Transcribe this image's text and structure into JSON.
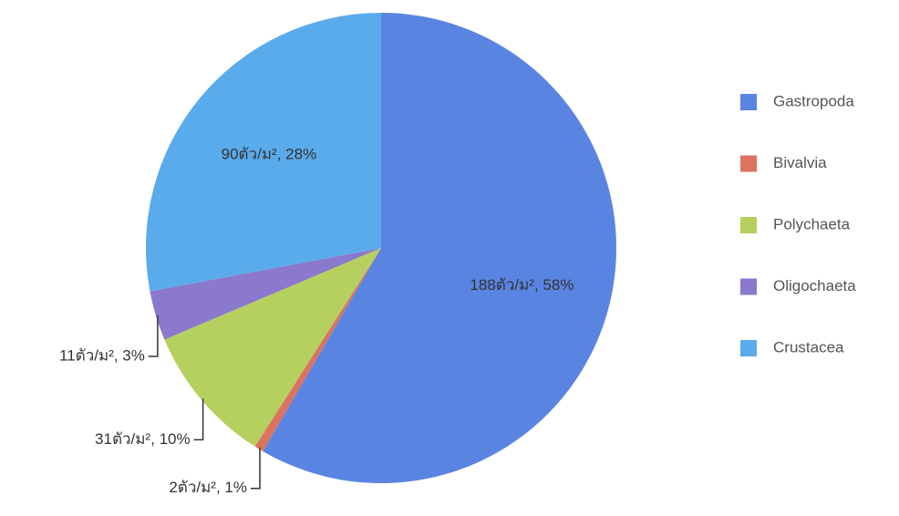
{
  "chart_data": {
    "type": "pie",
    "categories": [
      "Gastropoda",
      "Bivalvia",
      "Polychaeta",
      "Oligochaeta",
      "Crustacea"
    ],
    "values": [
      188,
      2,
      31,
      11,
      90
    ],
    "value_labels": [
      "188ตัว/ม², 58%",
      "2ตัว/ม², 1%",
      "31ตัว/ม², 10%",
      "11ตัว/ม², 3%",
      "90ตัว/ม², 28%"
    ],
    "colors": [
      "#5a84e2",
      "#dc735f",
      "#b6d060",
      "#8a79cc",
      "#5aabec"
    ],
    "legend": "right"
  }
}
